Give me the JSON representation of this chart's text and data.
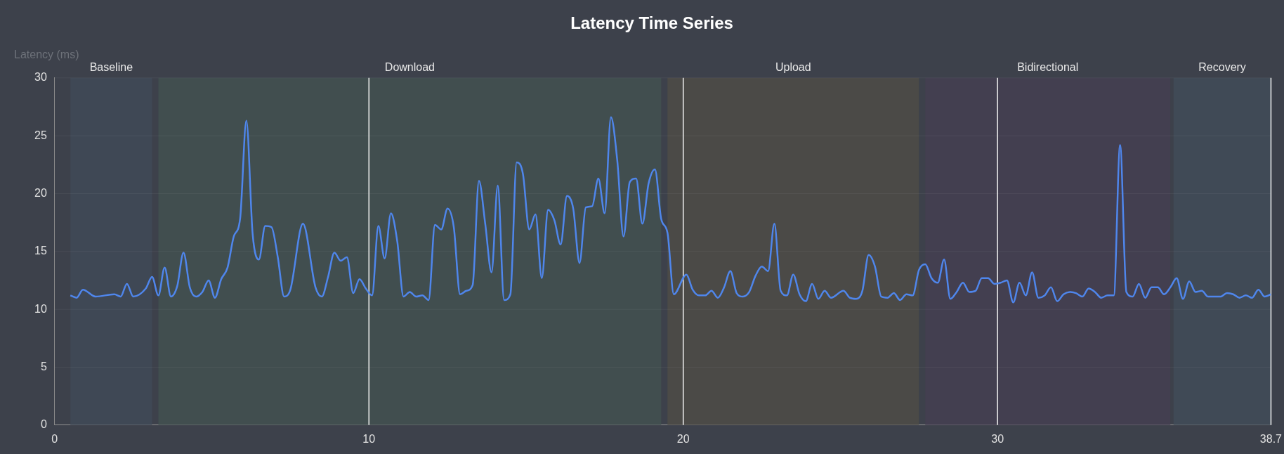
{
  "chart_data": {
    "type": "line",
    "title": "Latency Time Series",
    "ylabel": "Latency (ms)",
    "x": [
      0.5,
      0.7,
      0.9,
      1.3,
      1.9,
      2.1,
      2.3,
      2.5,
      2.9,
      3.1,
      3.3,
      3.5,
      3.7,
      3.9,
      4.1,
      4.3,
      4.5,
      4.7,
      4.9,
      5.1,
      5.3,
      5.5,
      5.7,
      5.9,
      6.1,
      6.3,
      6.5,
      6.7,
      6.9,
      7.1,
      7.3,
      7.5,
      7.9,
      8.3,
      8.5,
      8.7,
      8.9,
      9.1,
      9.3,
      9.5,
      9.7,
      9.9,
      10.1,
      10.3,
      10.5,
      10.7,
      10.9,
      11.1,
      11.3,
      11.5,
      11.7,
      11.9,
      12.1,
      12.3,
      12.5,
      12.7,
      12.9,
      13.1,
      13.3,
      13.5,
      13.7,
      13.9,
      14.1,
      14.3,
      14.5,
      14.7,
      14.9,
      15.1,
      15.3,
      15.5,
      15.7,
      15.9,
      16.1,
      16.3,
      16.5,
      16.7,
      16.9,
      17.1,
      17.3,
      17.5,
      17.7,
      17.9,
      18.1,
      18.3,
      18.5,
      18.7,
      18.9,
      19.1,
      19.3,
      19.5,
      19.7,
      20.1,
      20.3,
      20.5,
      20.7,
      20.9,
      21.1,
      21.3,
      21.5,
      21.7,
      21.9,
      22.1,
      22.3,
      22.5,
      22.7,
      22.9,
      23.1,
      23.3,
      23.5,
      23.7,
      23.9,
      24.1,
      24.3,
      24.5,
      24.7,
      25.1,
      25.3,
      25.5,
      25.7,
      25.9,
      26.1,
      26.3,
      26.5,
      26.7,
      26.9,
      27.1,
      27.3,
      27.5,
      27.7,
      27.9,
      28.1,
      28.3,
      28.5,
      28.7,
      28.9,
      29.1,
      29.3,
      29.5,
      29.7,
      29.9,
      30.1,
      30.3,
      30.5,
      30.7,
      30.9,
      31.1,
      31.3,
      31.5,
      31.7,
      31.9,
      32.1,
      32.3,
      32.5,
      32.7,
      32.9,
      33.1,
      33.3,
      33.5,
      33.7,
      33.9,
      34.1,
      34.3,
      34.5,
      34.7,
      34.9,
      35.1,
      35.3,
      35.5,
      35.7,
      35.9,
      36.1,
      36.3,
      36.5,
      36.7,
      37.1,
      37.3,
      37.5,
      37.7,
      37.9,
      38.1,
      38.3,
      38.5,
      38.7
    ],
    "series": [
      {
        "color": "#4f86ec",
        "values": [
          11.2,
          11.0,
          11.7,
          11.1,
          11.3,
          11.1,
          12.2,
          11.1,
          11.8,
          12.8,
          11.2,
          13.6,
          11.1,
          12.0,
          14.9,
          11.9,
          11.1,
          11.5,
          12.5,
          11.0,
          12.6,
          13.6,
          16.3,
          17.8,
          26.3,
          16.5,
          14.3,
          17.2,
          17.1,
          14.5,
          11.1,
          11.7,
          17.4,
          11.9,
          11.1,
          12.8,
          14.9,
          14.2,
          14.5,
          11.4,
          12.6,
          11.8,
          11.2,
          17.2,
          14.4,
          18.3,
          15.9,
          11.1,
          11.5,
          11.1,
          11.2,
          10.8,
          17.3,
          16.9,
          18.7,
          17.1,
          11.3,
          11.6,
          12.1,
          21.1,
          17.4,
          13.2,
          20.7,
          10.8,
          11.3,
          22.7,
          21.7,
          16.9,
          18.2,
          12.7,
          18.6,
          17.7,
          15.6,
          19.8,
          18.7,
          14.0,
          18.8,
          18.9,
          21.3,
          18.3,
          26.6,
          22.9,
          16.3,
          21.0,
          21.3,
          17.4,
          20.9,
          22.1,
          17.8,
          16.6,
          11.3,
          13.0,
          11.7,
          11.2,
          11.2,
          11.6,
          11.0,
          11.9,
          13.3,
          11.4,
          11.1,
          11.5,
          12.9,
          13.7,
          13.3,
          17.4,
          11.6,
          11.2,
          13.0,
          11.3,
          10.7,
          12.2,
          10.9,
          11.6,
          11.0,
          11.6,
          11.0,
          10.9,
          11.6,
          14.7,
          13.7,
          11.1,
          11.0,
          11.4,
          10.8,
          11.3,
          11.2,
          13.4,
          13.9,
          12.7,
          12.3,
          14.3,
          10.9,
          11.5,
          12.3,
          11.5,
          11.6,
          12.7,
          12.7,
          12.2,
          12.3,
          12.5,
          10.6,
          12.3,
          11.2,
          13.2,
          11.0,
          11.2,
          11.9,
          10.7,
          11.3,
          11.5,
          11.4,
          11.1,
          11.8,
          11.5,
          11.0,
          11.2,
          11.2,
          24.2,
          11.5,
          11.1,
          12.2,
          11.0,
          11.9,
          11.9,
          11.3,
          11.9,
          12.7,
          10.9,
          12.4,
          11.5,
          11.6,
          11.1,
          11.1,
          11.4,
          11.3,
          11.0,
          11.2,
          11.0,
          11.7,
          11.1,
          11.3
        ]
      }
    ],
    "xlim": [
      0,
      38.7
    ],
    "xticks": [
      0,
      10,
      20,
      30,
      38.7
    ],
    "ylim": [
      0,
      30
    ],
    "yticks": [
      0,
      5,
      10,
      15,
      20,
      25,
      30
    ],
    "grid": true,
    "legend": false,
    "marker": "none",
    "line_style": "solid",
    "bands": [
      {
        "axis": "x",
        "from": 0.5,
        "to": 3.1,
        "label": "Baseline",
        "color": "#3f4855"
      },
      {
        "axis": "x",
        "from": 3.3,
        "to": 19.3,
        "label": "Download",
        "color": "#414e4f"
      },
      {
        "axis": "x",
        "from": 19.5,
        "to": 27.5,
        "label": "Upload",
        "color": "#4b4a47"
      },
      {
        "axis": "x",
        "from": 27.7,
        "to": 35.5,
        "label": "Bidirectional",
        "color": "#433f50"
      },
      {
        "axis": "x",
        "from": 35.6,
        "to": 38.7,
        "label": "Recovery",
        "color": "#404a56"
      }
    ]
  }
}
